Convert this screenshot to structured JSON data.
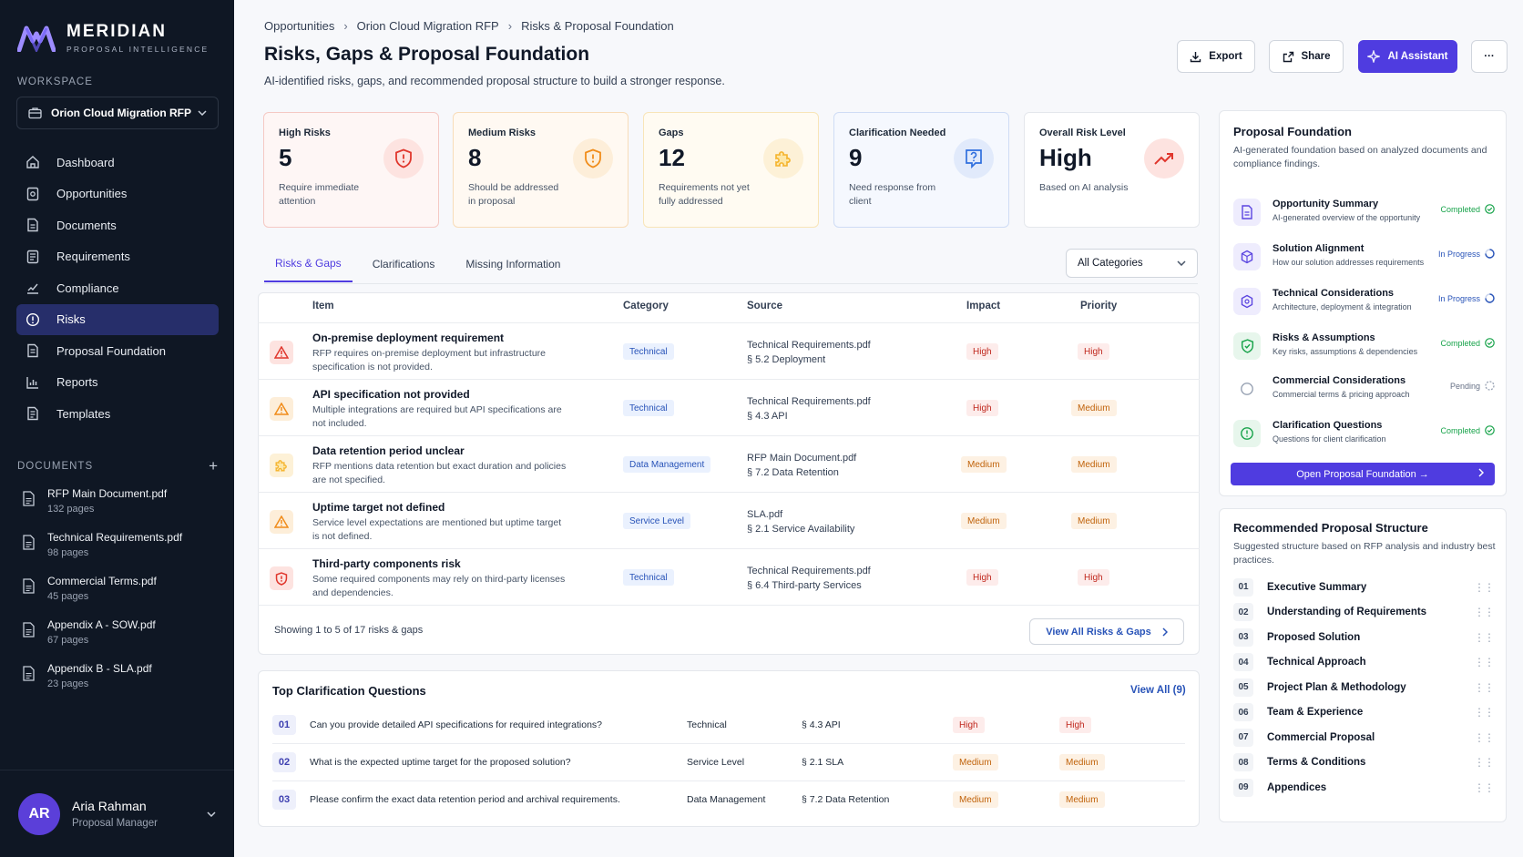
{
  "brand": {
    "name": "MERIDIAN",
    "tagline": "PROPOSAL INTELLIGENCE"
  },
  "workspace": {
    "label": "WORKSPACE",
    "selected": "Orion Cloud Migration RFP"
  },
  "nav": [
    {
      "label": "Dashboard",
      "icon": "home-icon"
    },
    {
      "label": "Opportunities",
      "icon": "briefcase-icon"
    },
    {
      "label": "Documents",
      "icon": "document-icon"
    },
    {
      "label": "Requirements",
      "icon": "list-icon"
    },
    {
      "label": "Compliance",
      "icon": "check-square-icon"
    },
    {
      "label": "Risks",
      "icon": "alert-circle-icon",
      "active": true
    },
    {
      "label": "Proposal Foundation",
      "icon": "layers-icon"
    },
    {
      "label": "Reports",
      "icon": "bar-chart-icon"
    },
    {
      "label": "Templates",
      "icon": "template-icon"
    }
  ],
  "documents": {
    "label": "DOCUMENTS",
    "add": "+",
    "items": [
      {
        "name": "RFP Main Document.pdf",
        "pages": "132 pages"
      },
      {
        "name": "Technical Requirements.pdf",
        "pages": "98 pages"
      },
      {
        "name": "Commercial Terms.pdf",
        "pages": "45 pages"
      },
      {
        "name": "Appendix A - SOW.pdf",
        "pages": "67 pages"
      },
      {
        "name": "Appendix B - SLA.pdf",
        "pages": "23 pages"
      }
    ]
  },
  "user": {
    "initials": "AR",
    "name": "Aria Rahman",
    "role": "Proposal Manager"
  },
  "breadcrumb": [
    "Opportunities",
    "Orion Cloud Migration RFP",
    "Risks & Proposal Foundation"
  ],
  "page": {
    "title": "Risks, Gaps & Proposal Foundation",
    "subtitle": "AI-identified risks, gaps, and recommended proposal structure to build a stronger response."
  },
  "actions": {
    "export": "Export",
    "share": "Share",
    "ai": "AI Assistant",
    "more": "···"
  },
  "stats": [
    {
      "label": "High Risks",
      "value": "5",
      "desc": "Require immediate attention",
      "icon": "shield-alert-icon",
      "color": "#e0362c"
    },
    {
      "label": "Medium Risks",
      "value": "8",
      "desc": "Should be addressed in proposal",
      "icon": "shield-icon",
      "color": "#f08c1a"
    },
    {
      "label": "Gaps",
      "value": "12",
      "desc": "Requirements not yet fully addressed",
      "icon": "puzzle-icon",
      "color": "#f5b32b"
    },
    {
      "label": "Clarification Needed",
      "value": "9",
      "desc": "Need response from client",
      "icon": "question-icon",
      "color": "#2f6fde"
    },
    {
      "label": "Overall Risk Level",
      "value": "High",
      "desc": "Based on AI analysis",
      "icon": "trend-up-icon",
      "color": "#e0362c"
    }
  ],
  "tabs": [
    "Risks & Gaps",
    "Clarifications",
    "Missing Information"
  ],
  "category_filter": "All Categories",
  "table": {
    "headers": [
      "Item",
      "Category",
      "Source",
      "Impact",
      "Priority"
    ],
    "rows": [
      {
        "title": "On-premise deployment requirement",
        "desc": "RFP requires on-premise deployment but infrastructure specification is not provided.",
        "category": "Technical",
        "source1": "Technical Requirements.pdf",
        "source2": "§ 5.2 Deployment",
        "impact": "High",
        "priority": "High",
        "icon": "alert-triangle-icon",
        "icolor": "#e0362c"
      },
      {
        "title": "API specification not provided",
        "desc": "Multiple integrations are required but API specifications are not included.",
        "category": "Technical",
        "source1": "Technical Requirements.pdf",
        "source2": "§ 4.3 API",
        "impact": "High",
        "priority": "Medium",
        "icon": "alert-triangle-icon",
        "icolor": "#f08c1a"
      },
      {
        "title": "Data retention period unclear",
        "desc": "RFP mentions data retention but exact duration and policies are not specified.",
        "category": "Data Management",
        "source1": "RFP Main Document.pdf",
        "source2": "§ 7.2 Data Retention",
        "impact": "Medium",
        "priority": "Medium",
        "icon": "puzzle-icon",
        "icolor": "#f5b32b"
      },
      {
        "title": "Uptime target not defined",
        "desc": "Service level expectations are mentioned but uptime target is not defined.",
        "category": "Service Level",
        "source1": "SLA.pdf",
        "source2": "§ 2.1 Service Availability",
        "impact": "Medium",
        "priority": "Medium",
        "icon": "alert-triangle-icon",
        "icolor": "#f08c1a"
      },
      {
        "title": "Third-party components risk",
        "desc": "Some required components may rely on third-party licenses and dependencies.",
        "category": "Technical",
        "source1": "Technical Requirements.pdf",
        "source2": "§ 6.4 Third-party Services",
        "impact": "High",
        "priority": "High",
        "icon": "shield-alert-icon",
        "icolor": "#e0362c"
      }
    ],
    "footer": "Showing 1 to 5 of 17 risks & gaps",
    "view_all": "View All Risks & Gaps"
  },
  "clarifications": {
    "title": "Top Clarification Questions",
    "view_all": "View All (9)",
    "items": [
      {
        "num": "01",
        "question": "Can you provide detailed API specifications for required integrations?",
        "category": "Technical",
        "source": "§ 4.3 API",
        "impact": "High",
        "priority": "High"
      },
      {
        "num": "02",
        "question": "What is the expected uptime target for the proposed solution?",
        "category": "Service Level",
        "source": "§ 2.1 SLA",
        "impact": "Medium",
        "priority": "Medium"
      },
      {
        "num": "03",
        "question": "Please confirm the exact data retention period and archival requirements.",
        "category": "Data Management",
        "source": "§ 7.2 Data Retention",
        "impact": "Medium",
        "priority": "Medium"
      }
    ]
  },
  "foundation": {
    "title": "Proposal Foundation",
    "desc": "AI-generated foundation based on analyzed documents and compliance findings.",
    "button": "Open Proposal Foundation →",
    "items": [
      {
        "name": "Opportunity Summary",
        "desc": "AI-generated overview of the opportunity",
        "status": "Completed",
        "icon": "file-text-icon"
      },
      {
        "name": "Solution Alignment",
        "desc": "How our solution addresses requirements",
        "status": "In Progress",
        "icon": "target-icon"
      },
      {
        "name": "Technical Considerations",
        "desc": "Architecture, deployment & integration",
        "status": "In Progress",
        "icon": "cpu-icon"
      },
      {
        "name": "Risks & Assumptions",
        "desc": "Key risks, assumptions & dependencies",
        "status": "Completed",
        "icon": "shield-icon"
      },
      {
        "name": "Commercial Considerations",
        "desc": "Commercial terms & pricing approach",
        "status": "Pending",
        "icon": "circle-icon"
      },
      {
        "name": "Clarification Questions",
        "desc": "Questions for client clarification",
        "status": "Completed",
        "icon": "help-circle-icon"
      }
    ]
  },
  "structure": {
    "title": "Recommended Proposal Structure",
    "desc": "Suggested structure based on RFP analysis and industry best practices.",
    "items": [
      {
        "num": "01",
        "label": "Executive Summary"
      },
      {
        "num": "02",
        "label": "Understanding of Requirements"
      },
      {
        "num": "03",
        "label": "Proposed Solution"
      },
      {
        "num": "04",
        "label": "Technical Approach"
      },
      {
        "num": "05",
        "label": "Project Plan & Methodology"
      },
      {
        "num": "06",
        "label": "Team & Experience"
      },
      {
        "num": "07",
        "label": "Commercial Proposal"
      },
      {
        "num": "08",
        "label": "Terms & Conditions"
      },
      {
        "num": "09",
        "label": "Appendices"
      }
    ]
  }
}
